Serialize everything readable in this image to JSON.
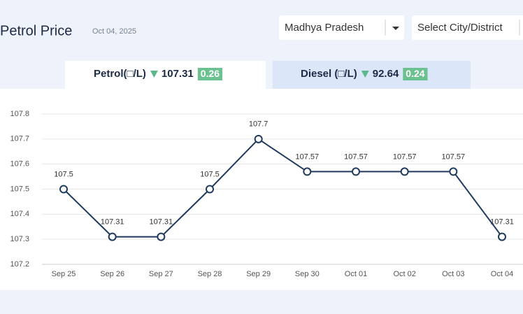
{
  "header": {
    "title": "Petrol Price",
    "date": "Oct 04, 2025",
    "state_select": "Madhya Pradesh",
    "city_select": "Select City/District"
  },
  "tabs": [
    {
      "label": "Petrol(□/L)",
      "price": 107.31,
      "change": 0.26
    },
    {
      "label": "Diesel (□/L)",
      "price": 92.64,
      "change": 0.24
    }
  ],
  "chart_data": {
    "type": "line",
    "categories": [
      "Sep 25",
      "Sep 26",
      "Sep 27",
      "Sep 28",
      "Sep 29",
      "Sep 30",
      "Oct 01",
      "Oct 02",
      "Oct 03",
      "Oct 04"
    ],
    "values": [
      107.5,
      107.31,
      107.31,
      107.5,
      107.7,
      107.57,
      107.57,
      107.57,
      107.57,
      107.31
    ],
    "color": "#1f3a5f",
    "ylim": [
      107.2,
      107.8
    ],
    "yticks": [
      107.2,
      107.3,
      107.4,
      107.5,
      107.6,
      107.7,
      107.8
    ],
    "grid": true
  }
}
